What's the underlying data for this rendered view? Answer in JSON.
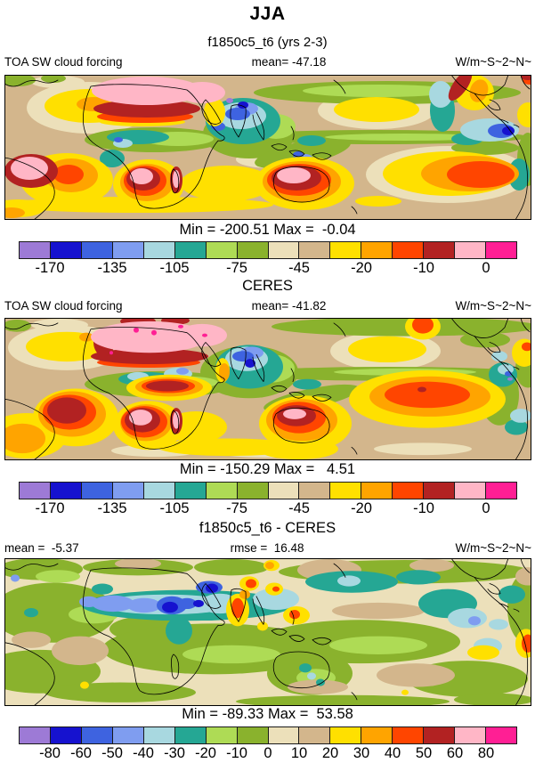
{
  "figure": {
    "season_title": "JJA",
    "case_title": "f1850c5_t6 (yrs 2-3)"
  },
  "panels": [
    {
      "id": "model",
      "variable": "TOA SW cloud forcing",
      "mean_label": "mean= -47.18",
      "units_label": "W/m~S~2~N~",
      "minmax_label": "Min = -200.51 Max =  -0.04"
    },
    {
      "id": "observation",
      "section_title": "CERES",
      "variable": "TOA SW cloud forcing",
      "mean_label": "mean= -41.82",
      "units_label": "W/m~S~2~N~",
      "minmax_label": "Min = -150.29 Max =   4.51"
    },
    {
      "id": "difference",
      "section_title": "f1850c5_t6 - CERES",
      "mean_label": "mean =  -5.37",
      "rmse_label": "rmse =  16.48",
      "units_label": "W/m~S~2~N~",
      "minmax_label": "Min = -89.33 Max =  53.58"
    }
  ],
  "colorbar": {
    "palette": [
      "#9d7ad6",
      "#1612cf",
      "#3e63e0",
      "#7f9df0",
      "#a8d8e0",
      "#25a794",
      "#aedb55",
      "#8ab22d",
      "#ece0ba",
      "#d3b68c",
      "#ffe000",
      "#ffa400",
      "#ff4500",
      "#b22222",
      "#ffb6c6",
      "#ff1f94"
    ],
    "main_ticks": [
      "-170",
      "-135",
      "-105",
      "-75",
      "-45",
      "-20",
      "-10",
      "0"
    ],
    "diff_ticks": [
      "-80",
      "-60",
      "-50",
      "-40",
      "-30",
      "-20",
      "-10",
      "0",
      "10",
      "20",
      "30",
      "40",
      "50",
      "60",
      "80"
    ]
  },
  "chart_data": [
    {
      "type": "heatmap",
      "panel": "model",
      "title": "f1850c5_t6 (yrs 2-3)",
      "season": "JJA",
      "variable": "TOA SW cloud forcing",
      "units_label": "W/m~S~2~N~",
      "mean": -47.18,
      "min": -200.51,
      "max": -0.04,
      "colorbar_tick_values": [
        -170,
        -135,
        -105,
        -75,
        -45,
        -20,
        -10,
        0
      ],
      "n_color_bins": 16,
      "projection": "global lat-lon contour map"
    },
    {
      "type": "heatmap",
      "panel": "observation",
      "title": "CERES",
      "season": "JJA",
      "variable": "TOA SW cloud forcing",
      "units_label": "W/m~S~2~N~",
      "mean": -41.82,
      "min": -150.29,
      "max": 4.51,
      "colorbar_tick_values": [
        -170,
        -135,
        -105,
        -75,
        -45,
        -20,
        -10,
        0
      ],
      "n_color_bins": 16,
      "projection": "global lat-lon contour map"
    },
    {
      "type": "heatmap",
      "panel": "difference",
      "title": "f1850c5_t6 - CERES",
      "season": "JJA",
      "variable": "TOA SW cloud forcing",
      "units_label": "W/m~S~2~N~",
      "mean": -5.37,
      "rmse": 16.48,
      "min": -89.33,
      "max": 53.58,
      "colorbar_tick_values": [
        -80,
        -60,
        -50,
        -40,
        -30,
        -20,
        -10,
        0,
        10,
        20,
        30,
        40,
        50,
        60,
        80
      ],
      "n_color_bins": 16,
      "projection": "global lat-lon contour map"
    }
  ]
}
